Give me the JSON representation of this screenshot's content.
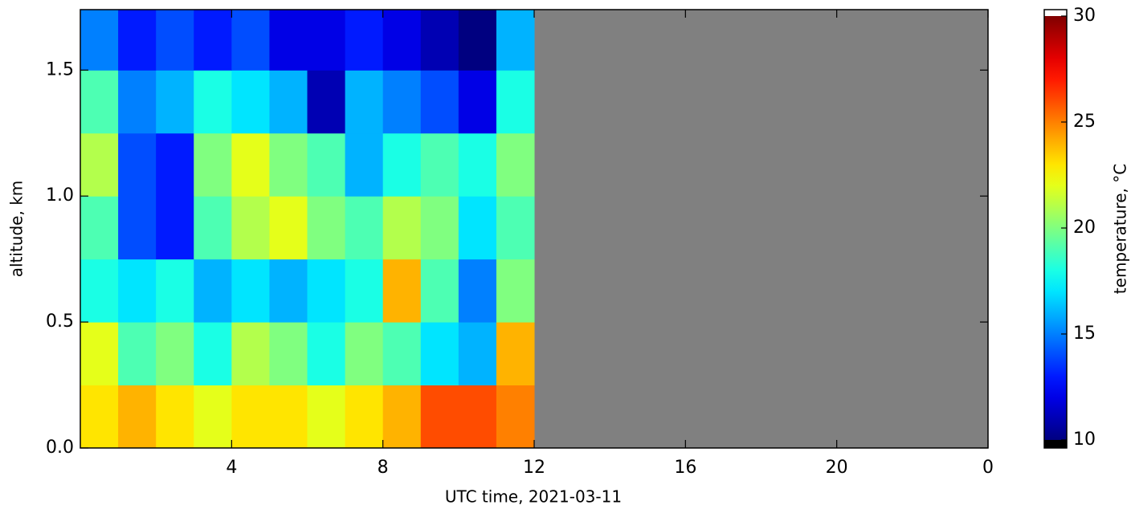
{
  "chart_data": {
    "type": "heatmap",
    "x_label": "UTC time,  2021-03-11",
    "y_label": "altitude, km",
    "colorbar_label": "temperature, °C",
    "colormap": "jet",
    "no_data_color": "#808080",
    "x_bins": [
      0,
      1,
      2,
      3,
      4,
      5,
      6,
      7,
      8,
      9,
      10,
      11,
      12
    ],
    "y_bins": [
      0,
      0.25,
      0.5,
      0.75,
      1.0,
      1.25,
      1.5,
      1.75
    ],
    "z": [
      [
        23,
        24,
        23,
        22,
        23,
        23,
        22,
        23,
        24,
        26,
        26,
        25
      ],
      [
        22,
        19,
        20,
        18,
        21,
        20,
        18,
        20,
        19,
        17,
        16,
        24
      ],
      [
        18,
        17,
        18,
        16,
        17,
        16,
        17,
        18,
        24,
        19,
        15,
        20
      ],
      [
        19,
        14,
        13,
        19,
        21,
        22,
        20,
        19,
        21,
        20,
        17,
        19
      ],
      [
        21,
        14,
        13,
        20,
        22,
        20,
        19,
        16,
        18,
        19,
        18,
        20
      ],
      [
        19,
        15,
        16,
        18,
        17,
        16,
        11,
        16,
        15,
        14,
        12,
        18
      ],
      [
        15,
        13,
        14,
        13,
        14,
        12,
        12,
        13,
        12,
        11,
        10,
        16
      ]
    ],
    "xlim": [
      0,
      24
    ],
    "xticks": [
      4,
      8,
      12,
      16,
      20,
      {
        "value": 24,
        "label": "0"
      }
    ],
    "ylim": [
      0,
      1.74
    ],
    "yticks": [
      {
        "value": 0,
        "label": "0.0"
      },
      0.5,
      {
        "value": 1,
        "label": "1.0"
      },
      1.5
    ],
    "clim": [
      10,
      30
    ],
    "cticks": [
      10,
      15,
      20,
      25,
      30
    ]
  }
}
